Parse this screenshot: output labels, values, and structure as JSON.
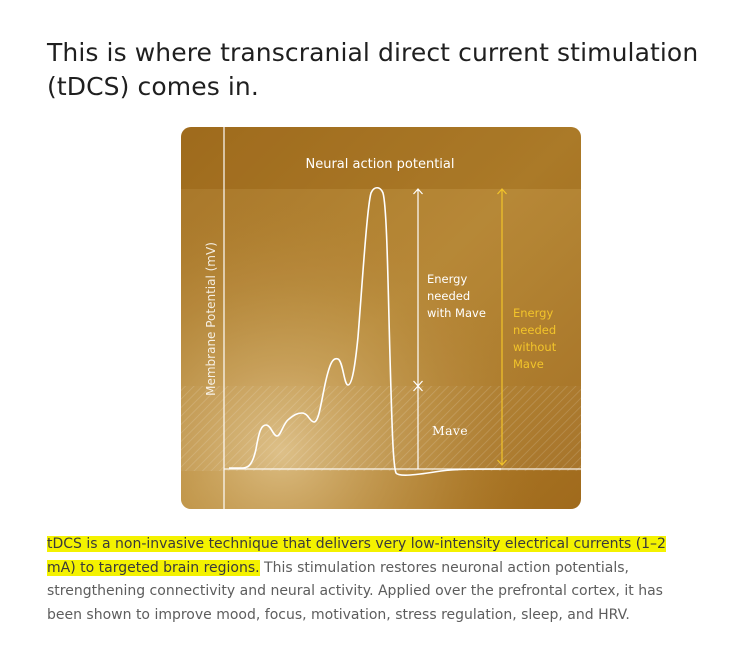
{
  "headline": "This is where transcranial direct current stimulation (tDCS) comes in.",
  "diagram": {
    "title": "Neural action potential",
    "y_axis_label": "Membrane Potential (mV)",
    "energy_with_label": [
      "Energy",
      "needed",
      "with Mave"
    ],
    "energy_without_label": [
      "Energy",
      "needed",
      "without",
      "Mave"
    ],
    "mave_logo_text": "Mave",
    "colors": {
      "background_top": "#a8741f",
      "background_bottom": "#c39a4a",
      "line": "#ffffff",
      "without_arrow": "#f2c42a"
    }
  },
  "paragraph": {
    "highlighted": "tDCS is a non-invasive technique that delivers very low-intensity electrical currents (1–2 mA) to targeted brain regions.",
    "rest": " This stimulation restores neuronal action potentials, strengthening connectivity and neural activity. Applied over the prefrontal cortex, it has been shown to improve mood, focus, motivation, stress regulation, sleep, and HRV.",
    "highlight_color": "#f4f200"
  }
}
